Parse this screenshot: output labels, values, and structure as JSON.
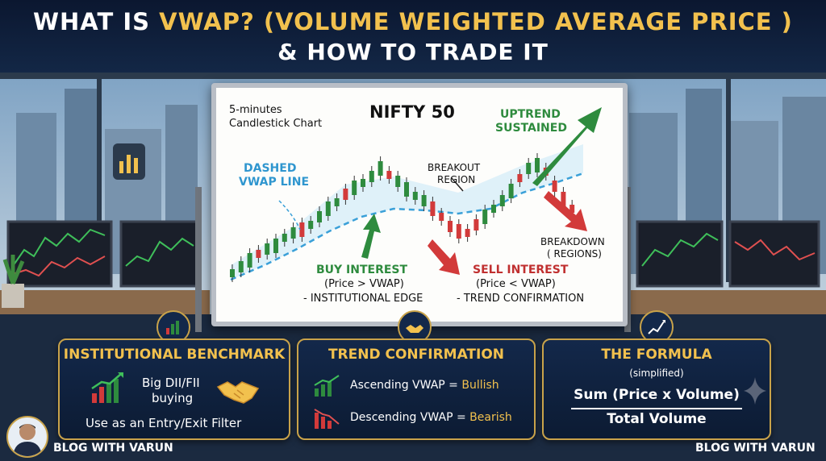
{
  "title": {
    "line1_a": "WHAT IS ",
    "line1_b": "VWAP? (VOLUME WEIGHTED AVERAGE PRICE )",
    "line2": "& HOW TO TRADE IT"
  },
  "board": {
    "chart_type": "5-minutes",
    "chart_type2": "Candlestick Chart",
    "instrument": "NIFTY 50",
    "dashed_label1": "DASHED",
    "dashed_label2": "VWAP LINE",
    "breakout1": "BREAKOUT",
    "breakout2": "REGION",
    "uptrend1": "UPTREND",
    "uptrend2": "SUSTAINED",
    "breakdown1": "BREAKDOWN",
    "breakdown2": "( REGIONS)",
    "buy_title": "BUY INTEREST",
    "buy_line1": "(Price > VWAP)",
    "buy_line2": "- INSTITUTIONAL EDGE",
    "sell_title": "SELL INTEREST",
    "sell_line1": "(Price < VWAP)",
    "sell_line2": "- TREND CONFIRMATION"
  },
  "panels": {
    "benchmark": {
      "title": "INSTITUTIONAL BENCHMARK",
      "text1": "Big DII/FII",
      "text2": "buying",
      "footer": "Use as an Entry/Exit Filter"
    },
    "trend": {
      "title": "TREND CONFIRMATION",
      "asc_prefix": "Ascending VWAP = ",
      "asc_value": "Bullish",
      "desc_prefix": "Descending VWAP = ",
      "desc_value": "Bearish"
    },
    "formula": {
      "title": "THE FORMULA",
      "subtitle": "(simplified)",
      "numerator": "Sum (Price x Volume)",
      "denominator": "Total Volume"
    }
  },
  "footer": {
    "left": "BLOG WITH VARUN",
    "right": "BLOG WITH VARUN"
  },
  "colors": {
    "gold": "#f2c14e",
    "bull": "#2e8b3e",
    "bear": "#d23a3a",
    "navy": "#13284a",
    "vwap": "#3aa0d8"
  },
  "icons": [
    "bar-chart-icon",
    "handshake-icon",
    "rising-chart-icon",
    "falling-chart-icon",
    "sparkle-icon",
    "avatar"
  ]
}
